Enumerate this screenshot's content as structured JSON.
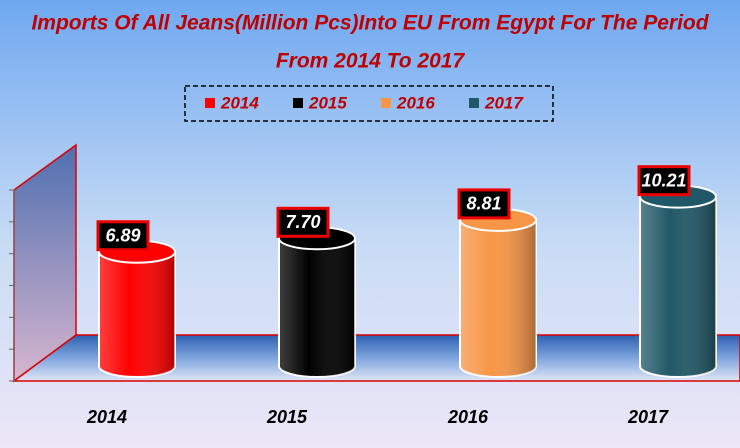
{
  "chart_data": {
    "type": "bar",
    "title": [
      "Imports Of All Jeans(Million Pcs)Into EU From Egypt For The Period",
      "From 2014 To 2017"
    ],
    "categories": [
      "2014",
      "2015",
      "2016",
      "2017"
    ],
    "values": [
      6.89,
      7.7,
      8.81,
      10.21
    ],
    "value_labels": [
      "6.89",
      "7.70",
      "8.81",
      "10.21"
    ],
    "colors": [
      "#ff0000",
      "#000000",
      "#f79646",
      "#215868"
    ],
    "ylim": [
      0,
      12
    ],
    "yticks": [
      0,
      2,
      4,
      6,
      8,
      10,
      12
    ]
  }
}
